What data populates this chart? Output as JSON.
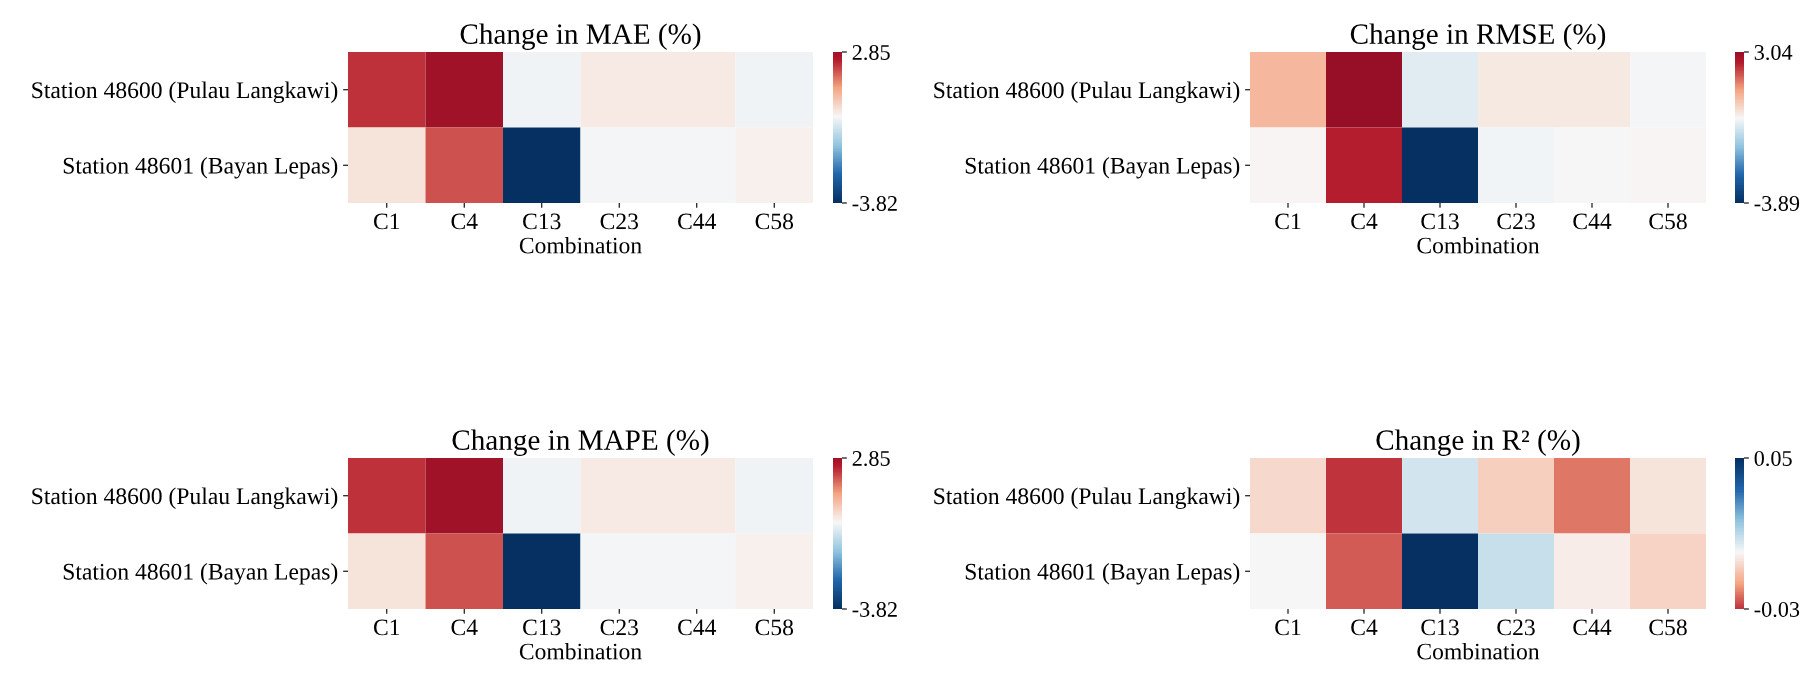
{
  "chart_data": [
    {
      "type": "heatmap",
      "title": "Change in MAE (%)",
      "xlabel": "Combination",
      "categories": [
        "C1",
        "C4",
        "C13",
        "C23",
        "C44",
        "C58"
      ],
      "y_categories": [
        "Station 48600 (Pulau Langkawi)",
        "Station 48601 (Bayan Lepas)"
      ],
      "cells": [
        [
          2.3,
          2.85,
          -0.1,
          0.2,
          0.2,
          -0.1
        ],
        [
          0.3,
          2.0,
          -3.82,
          -0.05,
          -0.05,
          0.1
        ]
      ],
      "clim": [
        -3.82,
        2.85
      ],
      "cticks": [
        -3.82,
        2.85
      ],
      "colors": [
        "#053061",
        "#2166ac",
        "#92c5de",
        "#f7f7f7",
        "#f4a582",
        "#b2182b",
        "#67001f"
      ]
    },
    {
      "type": "heatmap",
      "title": "Change in RMSE (%)",
      "xlabel": "Combination",
      "categories": [
        "C1",
        "C4",
        "C13",
        "C23",
        "C44",
        "C58"
      ],
      "y_categories": [
        "Station 48600 (Pulau Langkawi)",
        "Station 48601 (Bayan Lepas)"
      ],
      "cells": [
        [
          1.0,
          3.04,
          -0.3,
          0.2,
          0.2,
          -0.05
        ],
        [
          0.05,
          2.5,
          -3.89,
          -0.1,
          0.03,
          0.05
        ]
      ],
      "clim": [
        -3.89,
        3.04
      ],
      "cticks": [
        -3.89,
        3.04
      ],
      "colors": [
        "#053061",
        "#2166ac",
        "#92c5de",
        "#f7f7f7",
        "#f4a582",
        "#b2182b",
        "#67001f"
      ]
    },
    {
      "type": "heatmap",
      "title": "Change in MAPE (%)",
      "xlabel": "Combination",
      "categories": [
        "C1",
        "C4",
        "C13",
        "C23",
        "C44",
        "C58"
      ],
      "y_categories": [
        "Station 48600 (Pulau Langkawi)",
        "Station 48601 (Bayan Lepas)"
      ],
      "cells": [
        [
          2.3,
          2.85,
          -0.1,
          0.2,
          0.2,
          -0.1
        ],
        [
          0.3,
          2.0,
          -3.82,
          -0.05,
          -0.05,
          0.1
        ]
      ],
      "clim": [
        -3.82,
        2.85
      ],
      "cticks": [
        -3.82,
        2.85
      ],
      "colors": [
        "#053061",
        "#2166ac",
        "#92c5de",
        "#f7f7f7",
        "#f4a582",
        "#b2182b",
        "#67001f"
      ]
    },
    {
      "type": "heatmap",
      "title": "Change in R² (%)",
      "xlabel": "Combination",
      "categories": [
        "C1",
        "C4",
        "C13",
        "C23",
        "C44",
        "C58"
      ],
      "y_categories": [
        "Station 48600 (Pulau Langkawi)",
        "Station 48601 (Bayan Lepas)"
      ],
      "cells": [
        [
          -0.006,
          -0.03,
          0.006,
          -0.008,
          -0.022,
          -0.004
        ],
        [
          0.0,
          -0.025,
          0.05,
          0.008,
          -0.002,
          -0.007
        ]
      ],
      "clim": [
        -0.03,
        0.05
      ],
      "cticks": [
        -0.03,
        0.05
      ],
      "colors": [
        "#67001f",
        "#b2182b",
        "#f4a582",
        "#f7f7f7",
        "#92c5de",
        "#2166ac",
        "#053061"
      ]
    }
  ]
}
